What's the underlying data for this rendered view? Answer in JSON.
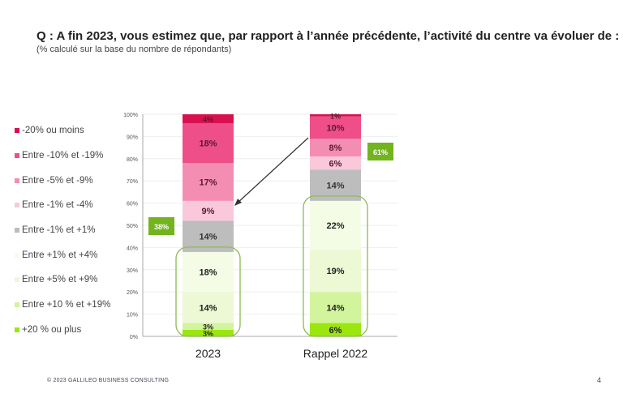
{
  "chart_data": {
    "type": "bar",
    "stacked": true,
    "title": "Q : A fin 2023, vous estimez que, par rapport à l’année précédente, l’activité du centre va évoluer de :",
    "subtitle": "(% calculé sur la base du nombre de répondants)",
    "categories": [
      "2023",
      "Rappel 2022"
    ],
    "ylim": [
      0,
      100
    ],
    "yticks": [
      "0%",
      "10%",
      "20%",
      "30%",
      "40%",
      "50%",
      "60%",
      "70%",
      "80%",
      "90%",
      "100%"
    ],
    "series": [
      {
        "name": "+20 % ou plus",
        "color": "#9ae60e",
        "values": [
          3,
          6
        ]
      },
      {
        "name": "Entre +10 % et +19%",
        "color": "#d2f49c",
        "values": [
          3,
          14
        ]
      },
      {
        "name": "Entre +5% et +9%",
        "color": "#ecf9d4",
        "values": [
          14,
          19
        ]
      },
      {
        "name": "Entre +1% et +4%",
        "color": "#f5fce6",
        "values": [
          18,
          22
        ]
      },
      {
        "name": "Entre -1% et +1%",
        "color": "#bdbdbd",
        "values": [
          14,
          14
        ]
      },
      {
        "name": "Entre -1% et -4%",
        "color": "#f9c8da",
        "values": [
          9,
          6
        ]
      },
      {
        "name": "Entre -5% et -9%",
        "color": "#f48db2",
        "values": [
          17,
          8
        ]
      },
      {
        "name": "Entre -10% et -19%",
        "color": "#ee4f88",
        "values": [
          18,
          10
        ]
      },
      {
        "name": "-20% ou moins",
        "color": "#d8104f",
        "values": [
          4,
          1
        ]
      }
    ],
    "annotations": [
      "38%",
      "61%"
    ]
  },
  "footer": "© 2023 GALLILEO BUSINESS CONSULTING",
  "page_number": "4"
}
